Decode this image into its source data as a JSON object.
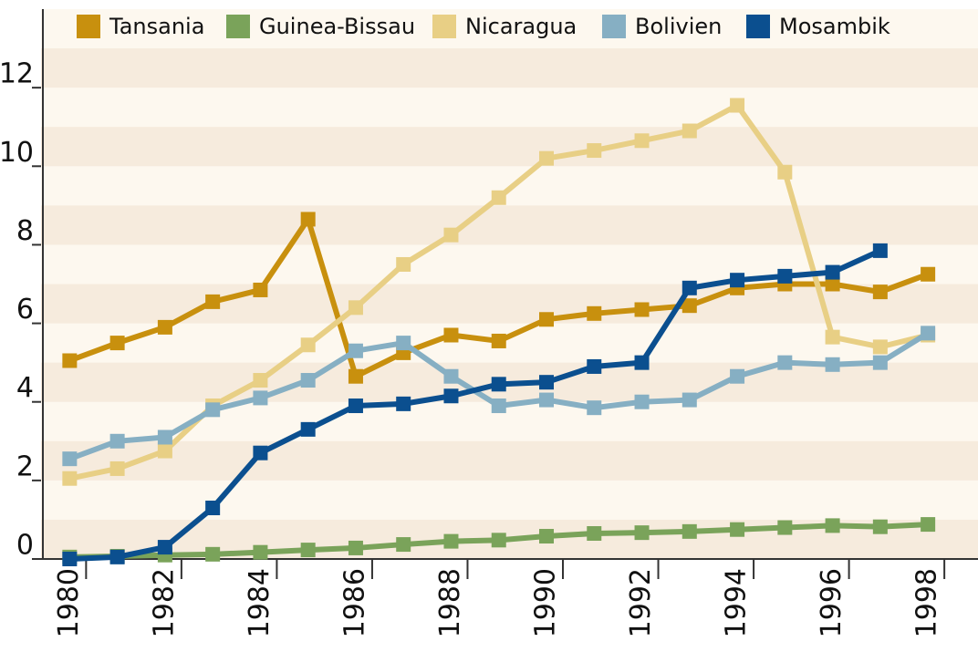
{
  "chart_data": {
    "type": "line",
    "x": [
      1980,
      1981,
      1982,
      1983,
      1984,
      1985,
      1986,
      1987,
      1988,
      1989,
      1990,
      1991,
      1992,
      1993,
      1994,
      1995,
      1996,
      1997,
      1998
    ],
    "series": [
      {
        "name": "Tansania",
        "color": "#c8900e",
        "values": [
          5.05,
          5.5,
          5.9,
          6.55,
          6.85,
          8.65,
          4.65,
          5.25,
          5.7,
          5.55,
          6.1,
          6.25,
          6.35,
          6.45,
          6.9,
          7.0,
          7.0,
          6.8,
          7.25
        ]
      },
      {
        "name": "Guinea-Bissau",
        "color": "#7aa35a",
        "values": [
          0.05,
          0.07,
          0.1,
          0.12,
          0.17,
          0.23,
          0.28,
          0.37,
          0.45,
          0.48,
          0.58,
          0.65,
          0.67,
          0.7,
          0.75,
          0.8,
          0.85,
          0.82,
          0.88
        ]
      },
      {
        "name": "Nicaragua",
        "color": "#e8cf85",
        "values": [
          2.05,
          2.3,
          2.75,
          3.9,
          4.55,
          5.45,
          6.4,
          7.5,
          8.25,
          9.2,
          10.2,
          10.4,
          10.65,
          10.9,
          11.55,
          9.85,
          5.65,
          5.4,
          5.7
        ]
      },
      {
        "name": "Bolivien",
        "color": "#86afc3",
        "values": [
          2.55,
          3.0,
          3.1,
          3.8,
          4.1,
          4.55,
          5.3,
          5.5,
          4.65,
          3.9,
          4.05,
          3.85,
          4.0,
          4.05,
          4.65,
          5.0,
          4.95,
          5.0,
          5.75
        ]
      },
      {
        "name": "Mosambik",
        "color": "#0b4f8f",
        "values": [
          0,
          0.05,
          0.3,
          1.3,
          2.7,
          3.3,
          3.9,
          3.95,
          4.15,
          4.45,
          4.5,
          4.9,
          5.0,
          6.9,
          7.1,
          7.2,
          7.3,
          7.85,
          null
        ]
      }
    ],
    "xlim": [
      1979.4,
      1999.05
    ],
    "xticks": [
      1980,
      1982,
      1984,
      1986,
      1988,
      1990,
      1992,
      1994,
      1996,
      1998
    ],
    "ylim": [
      0,
      14
    ],
    "yticks": [
      0,
      2,
      4,
      6,
      8,
      10,
      12
    ]
  }
}
